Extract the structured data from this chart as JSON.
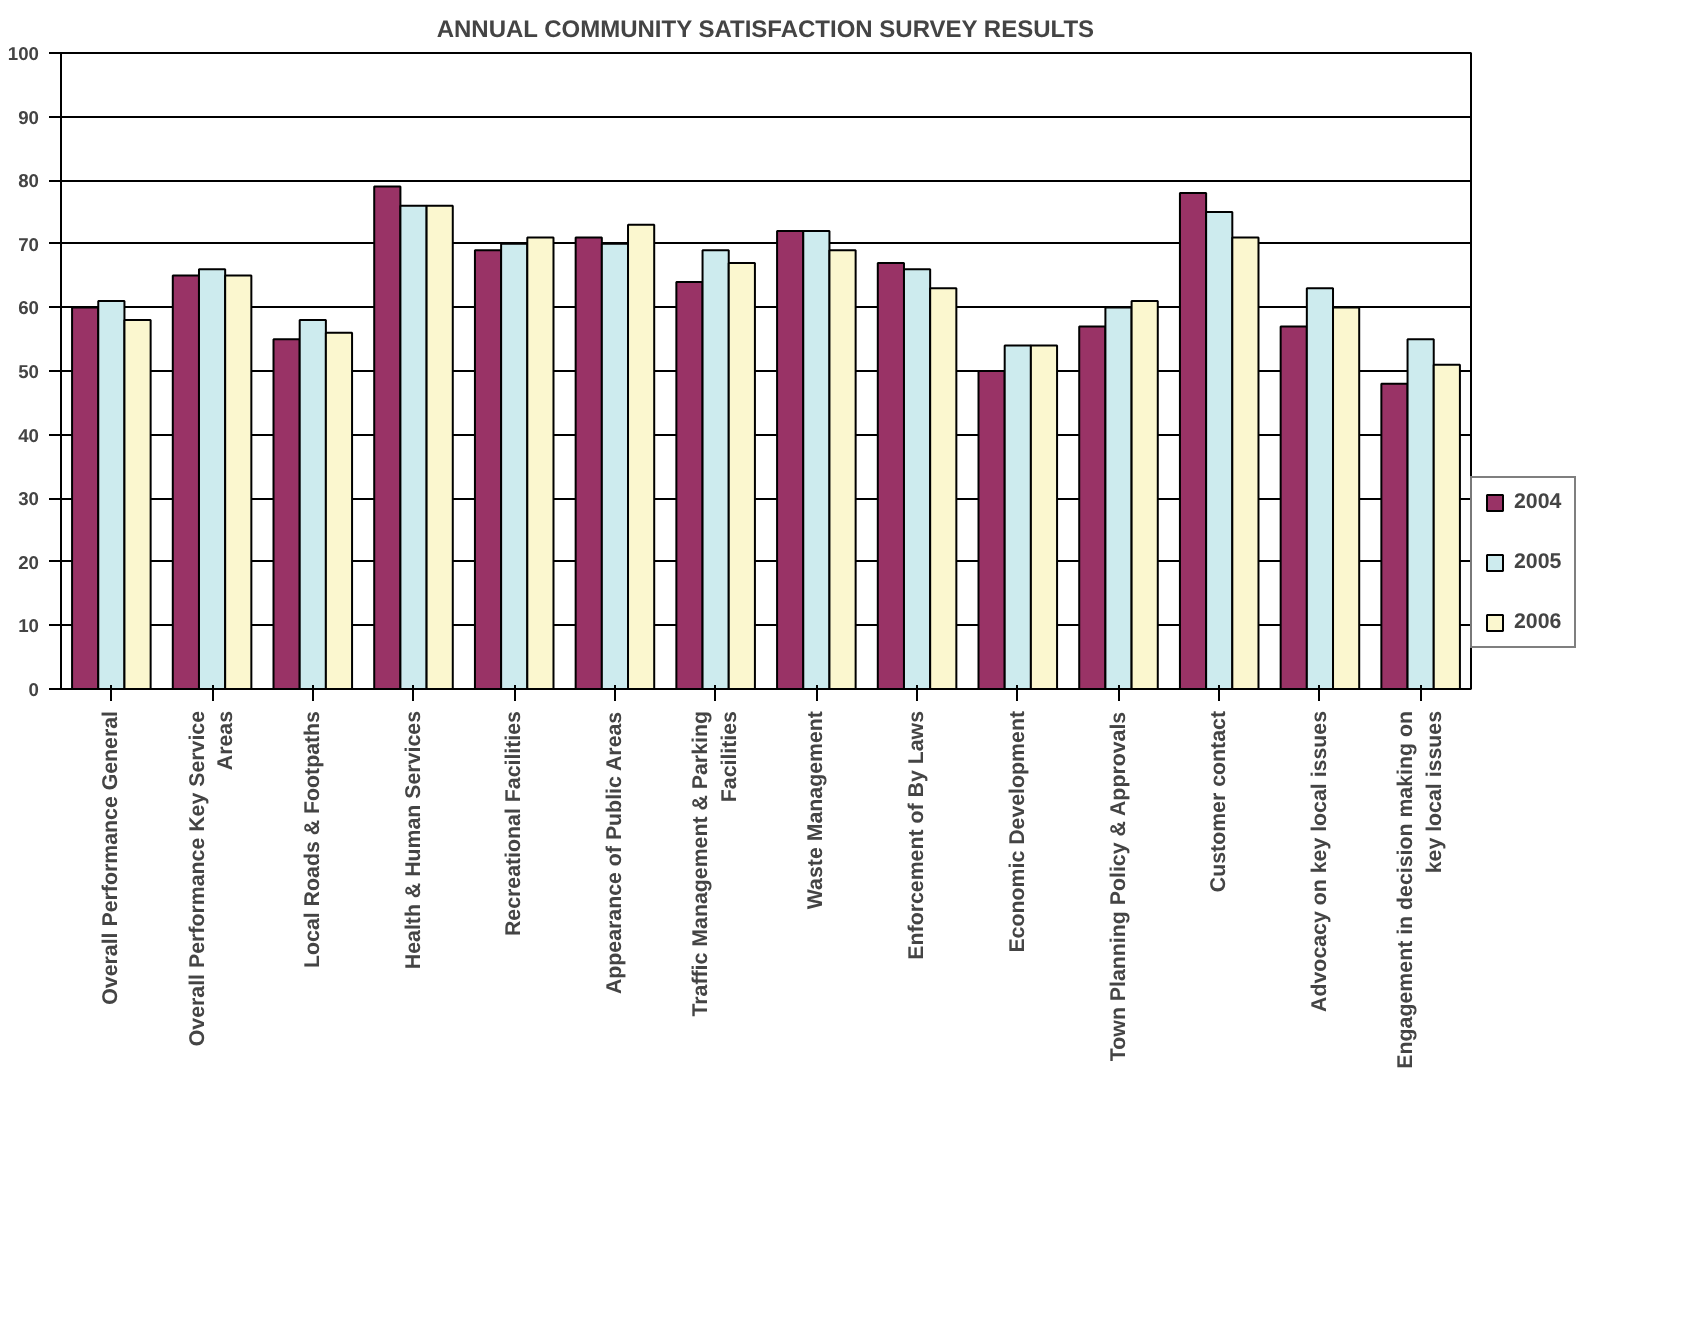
{
  "chart_data": {
    "type": "bar",
    "title": "ANNUAL COMMUNITY SATISFACTION SURVEY RESULTS",
    "categories": [
      "Overall Performance General",
      "Overall Performance Key Service Areas",
      "Local Roads & Footpaths",
      "Health & Human Services",
      "Recreational Facilities",
      "Appearance of Public Areas",
      "Traffic Management & Parking Facilities",
      "Waste Management",
      "Enforcement of By Laws",
      "Economic Development",
      "Town Planning Policy & Approvals",
      "Customer contact",
      "Advocacy on key local issues",
      "Engagement in decision making on key local issues"
    ],
    "series": [
      {
        "name": "2004",
        "color": "#993366",
        "values": [
          60,
          65,
          55,
          79,
          69,
          71,
          64,
          72,
          67,
          50,
          57,
          78,
          57,
          48
        ]
      },
      {
        "name": "2005",
        "color": "#cdebee",
        "values": [
          61,
          66,
          58,
          76,
          70,
          70,
          69,
          72,
          66,
          54,
          60,
          75,
          63,
          55
        ]
      },
      {
        "name": "2006",
        "color": "#fbf7cf",
        "values": [
          58,
          65,
          56,
          76,
          71,
          73,
          67,
          69,
          63,
          54,
          61,
          71,
          60,
          51
        ]
      }
    ],
    "ylim": [
      0,
      100
    ],
    "yticks": [
      0,
      10,
      20,
      30,
      40,
      50,
      60,
      70,
      80,
      90,
      100
    ],
    "grid": "y",
    "legend": "right"
  }
}
